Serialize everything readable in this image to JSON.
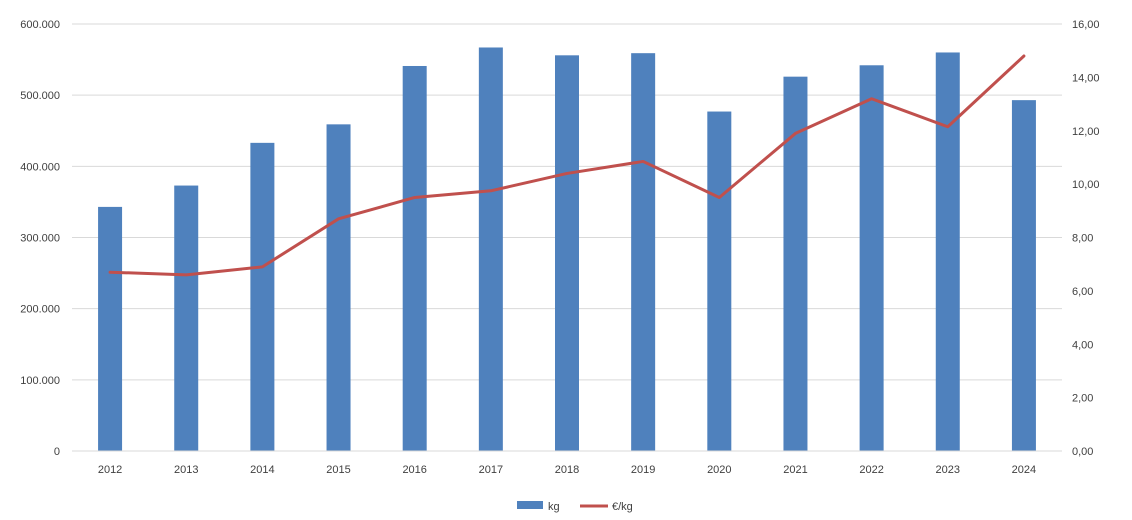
{
  "chart_data": {
    "type": "bar+line",
    "categories": [
      "2012",
      "2013",
      "2014",
      "2015",
      "2016",
      "2017",
      "2018",
      "2019",
      "2020",
      "2021",
      "2022",
      "2023",
      "2024"
    ],
    "series": [
      {
        "name": "kg",
        "type": "bar",
        "axis": "left",
        "color": "#4F81BD",
        "values": [
          343000,
          373000,
          433000,
          459000,
          541000,
          567000,
          556000,
          559000,
          477000,
          526000,
          542000,
          560000,
          493000
        ]
      },
      {
        "name": "€/kg",
        "type": "line",
        "axis": "right",
        "color": "#C0504D",
        "values": [
          6.7,
          6.6,
          6.9,
          8.7,
          9.5,
          9.75,
          10.4,
          10.85,
          9.5,
          11.9,
          13.2,
          12.15,
          14.8
        ]
      }
    ],
    "y_left": {
      "min": 0,
      "max": 600000,
      "step": 100000,
      "tick_labels": [
        "0",
        "100.000",
        "200.000",
        "300.000",
        "400.000",
        "500.000",
        "600.000"
      ]
    },
    "y_right": {
      "min": 0,
      "max": 16,
      "step": 2,
      "tick_labels": [
        "0,00",
        "2,00",
        "4,00",
        "6,00",
        "8,00",
        "10,00",
        "12,00",
        "14,00",
        "16,00"
      ]
    },
    "grid": true,
    "legend": "bottom"
  }
}
